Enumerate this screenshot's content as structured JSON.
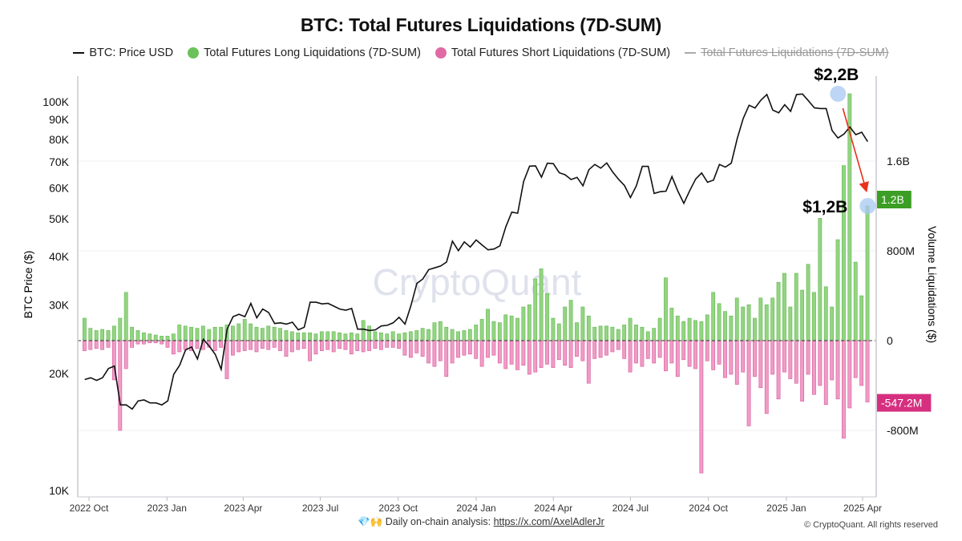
{
  "chart_data": {
    "type": "bar+line",
    "title": "BTC: Total Futures Liquidations (7D-SUM)",
    "legend": [
      {
        "name": "BTC: Price USD",
        "color": "#111111",
        "marker": "line",
        "enabled": true
      },
      {
        "name": "Total Futures Long Liquidations (7D-SUM)",
        "color": "#6cc25a",
        "marker": "dot",
        "enabled": true
      },
      {
        "name": "Total Futures Short Liquidations (7D-SUM)",
        "color": "#e06aa6",
        "marker": "dot",
        "enabled": true
      },
      {
        "name": "Total Futures Liquidations (7D-SUM)",
        "color": "#999999",
        "marker": "line",
        "enabled": false
      }
    ],
    "legend_position": "top",
    "left_axis": {
      "label": "BTC Price ($)",
      "scale": "log",
      "range": [
        10000,
        120000
      ],
      "ticks": [
        "100K",
        "90K",
        "80K",
        "70K",
        "60K",
        "50K",
        "40K",
        "30K",
        "20K",
        "10K"
      ],
      "tick_values": [
        100000,
        90000,
        80000,
        70000,
        60000,
        50000,
        40000,
        30000,
        20000,
        10000
      ]
    },
    "right_axis": {
      "label": "Volume Liquidations ($)",
      "scale": "linear",
      "unit": "M",
      "range": [
        -1200,
        2250
      ],
      "ticks": [
        "1.6B",
        "800M",
        "0",
        "-800M"
      ],
      "tick_values": [
        1600,
        800,
        0,
        -800
      ]
    },
    "x_axis": {
      "ticks": [
        "2022 Oct",
        "2023 Jan",
        "2023 Apr",
        "2023 Jul",
        "2023 Oct",
        "2024 Jan",
        "2024 Apr",
        "2024 Jul",
        "2024 Oct",
        "2025 Jan",
        "2025 Apr"
      ],
      "tick_dates": [
        "2022-10-01",
        "2023-01-01",
        "2023-04-01",
        "2023-07-01",
        "2023-10-01",
        "2024-01-01",
        "2024-04-01",
        "2024-07-01",
        "2024-10-01",
        "2025-01-01",
        "2025-04-01"
      ]
    },
    "dates": [
      "2022-09-26",
      "2022-10-03",
      "2022-10-10",
      "2022-10-17",
      "2022-10-24",
      "2022-10-31",
      "2022-11-07",
      "2022-11-14",
      "2022-11-21",
      "2022-11-28",
      "2022-12-05",
      "2022-12-12",
      "2022-12-19",
      "2022-12-26",
      "2023-01-02",
      "2023-01-09",
      "2023-01-16",
      "2023-01-23",
      "2023-01-30",
      "2023-02-06",
      "2023-02-13",
      "2023-02-20",
      "2023-02-27",
      "2023-03-06",
      "2023-03-13",
      "2023-03-20",
      "2023-03-27",
      "2023-04-03",
      "2023-04-10",
      "2023-04-17",
      "2023-04-24",
      "2023-05-01",
      "2023-05-08",
      "2023-05-15",
      "2023-05-22",
      "2023-05-29",
      "2023-06-05",
      "2023-06-12",
      "2023-06-19",
      "2023-06-26",
      "2023-07-03",
      "2023-07-10",
      "2023-07-17",
      "2023-07-24",
      "2023-07-31",
      "2023-08-07",
      "2023-08-14",
      "2023-08-21",
      "2023-08-28",
      "2023-09-04",
      "2023-09-11",
      "2023-09-18",
      "2023-09-25",
      "2023-10-02",
      "2023-10-09",
      "2023-10-16",
      "2023-10-23",
      "2023-10-30",
      "2023-11-06",
      "2023-11-13",
      "2023-11-20",
      "2023-11-27",
      "2023-12-04",
      "2023-12-11",
      "2023-12-18",
      "2023-12-25",
      "2024-01-01",
      "2024-01-08",
      "2024-01-15",
      "2024-01-22",
      "2024-01-29",
      "2024-02-05",
      "2024-02-12",
      "2024-02-19",
      "2024-02-26",
      "2024-03-04",
      "2024-03-11",
      "2024-03-18",
      "2024-03-25",
      "2024-04-01",
      "2024-04-08",
      "2024-04-15",
      "2024-04-22",
      "2024-04-29",
      "2024-05-06",
      "2024-05-13",
      "2024-05-20",
      "2024-05-27",
      "2024-06-03",
      "2024-06-10",
      "2024-06-17",
      "2024-06-24",
      "2024-07-01",
      "2024-07-08",
      "2024-07-15",
      "2024-07-22",
      "2024-07-29",
      "2024-08-05",
      "2024-08-12",
      "2024-08-19",
      "2024-08-26",
      "2024-09-02",
      "2024-09-09",
      "2024-09-16",
      "2024-09-23",
      "2024-09-30",
      "2024-10-07",
      "2024-10-14",
      "2024-10-21",
      "2024-10-28",
      "2024-11-04",
      "2024-11-11",
      "2024-11-18",
      "2024-11-25",
      "2024-12-02",
      "2024-12-09",
      "2024-12-16",
      "2024-12-23",
      "2024-12-30",
      "2025-01-06",
      "2025-01-13",
      "2025-01-20",
      "2025-01-27",
      "2025-02-03",
      "2025-02-10",
      "2025-02-17",
      "2025-02-24",
      "2025-03-03",
      "2025-03-10",
      "2025-03-17",
      "2025-03-24",
      "2025-03-31",
      "2025-04-07"
    ],
    "series": [
      {
        "name": "BTC: Price USD",
        "unit": "K USD",
        "axis": "left",
        "values": [
          19.3,
          19.5,
          19.2,
          19.5,
          20.6,
          20.9,
          16.6,
          16.6,
          16.2,
          17.0,
          17.1,
          16.8,
          16.8,
          16.6,
          17.0,
          19.9,
          21.0,
          23.0,
          23.4,
          21.8,
          24.5,
          23.5,
          22.4,
          20.5,
          26.0,
          28.0,
          28.4,
          28.0,
          30.3,
          27.8,
          29.3,
          28.7,
          26.9,
          27.0,
          26.8,
          27.1,
          25.9,
          26.3,
          30.5,
          30.5,
          30.2,
          30.3,
          29.8,
          29.3,
          29.1,
          29.4,
          26.0,
          26.0,
          25.8,
          25.9,
          26.5,
          26.6,
          27.0,
          27.9,
          26.8,
          29.9,
          34.1,
          35.0,
          37.0,
          37.4,
          37.8,
          38.7,
          43.8,
          41.4,
          43.6,
          42.3,
          44.1,
          42.8,
          41.6,
          41.8,
          42.6,
          47.7,
          52.0,
          51.7,
          62.4,
          68.3,
          68.4,
          64.0,
          69.5,
          69.3,
          65.7,
          64.9,
          63.1,
          63.9,
          60.8,
          66.9,
          69.0,
          67.5,
          69.6,
          66.0,
          63.2,
          60.9,
          56.7,
          60.8,
          68.2,
          68.2,
          58.1,
          58.7,
          58.9,
          64.2,
          58.9,
          54.8,
          59.1,
          63.3,
          65.6,
          62.1,
          62.9,
          69.0,
          67.9,
          69.5,
          80.4,
          90.5,
          98.0,
          96.4,
          101.0,
          104.4,
          95.2,
          93.7,
          98.3,
          94.5,
          104.4,
          104.7,
          100.6,
          96.5,
          96.1,
          96.1,
          84.4,
          80.7,
          82.6,
          86.1,
          82.3,
          83.5,
          79.0
        ]
      },
      {
        "name": "Total Futures Long Liquidations (7D-SUM)",
        "unit": "M USD",
        "axis": "right",
        "values": [
          200,
          110,
          90,
          100,
          90,
          130,
          200,
          430,
          120,
          90,
          70,
          60,
          50,
          40,
          40,
          60,
          140,
          130,
          120,
          110,
          130,
          100,
          120,
          120,
          140,
          130,
          150,
          190,
          150,
          120,
          110,
          130,
          120,
          110,
          90,
          80,
          70,
          70,
          70,
          60,
          80,
          80,
          80,
          70,
          60,
          70,
          60,
          180,
          130,
          80,
          70,
          60,
          80,
          60,
          70,
          80,
          90,
          110,
          100,
          160,
          170,
          120,
          100,
          80,
          90,
          100,
          140,
          190,
          280,
          170,
          160,
          230,
          220,
          200,
          300,
          320,
          550,
          640,
          420,
          200,
          150,
          300,
          360,
          160,
          300,
          220,
          120,
          130,
          130,
          120,
          100,
          140,
          200,
          140,
          120,
          80,
          110,
          200,
          560,
          290,
          220,
          170,
          200,
          180,
          170,
          230,
          430,
          330,
          260,
          220,
          380,
          300,
          320,
          200,
          380,
          320,
          380,
          520,
          600,
          300,
          600,
          450,
          680,
          430,
          1090,
          480,
          300,
          900,
          1560,
          2200,
          700,
          400,
          1200
        ]
      },
      {
        "name": "Total Futures Short Liquidations (7D-SUM)",
        "unit": "M USD",
        "axis": "right",
        "values": [
          -90,
          -80,
          -70,
          -80,
          -60,
          -350,
          -800,
          -250,
          -60,
          -30,
          -30,
          -20,
          -20,
          -30,
          -60,
          -120,
          -100,
          -80,
          -90,
          -70,
          -80,
          -60,
          -90,
          -60,
          -340,
          -130,
          -100,
          -90,
          -80,
          -100,
          -70,
          -80,
          -60,
          -90,
          -140,
          -100,
          -80,
          -70,
          -180,
          -120,
          -90,
          -80,
          -100,
          -70,
          -80,
          -120,
          -90,
          -100,
          -90,
          -70,
          -80,
          -60,
          -60,
          -70,
          -130,
          -150,
          -110,
          -140,
          -200,
          -230,
          -180,
          -320,
          -200,
          -150,
          -130,
          -120,
          -160,
          -230,
          -150,
          -130,
          -200,
          -250,
          -210,
          -260,
          -220,
          -300,
          -280,
          -240,
          -210,
          -240,
          -170,
          -220,
          -240,
          -140,
          -180,
          -380,
          -160,
          -150,
          -130,
          -100,
          -80,
          -160,
          -280,
          -200,
          -230,
          -160,
          -200,
          -150,
          -270,
          -200,
          -320,
          -170,
          -230,
          -250,
          -1180,
          -180,
          -260,
          -210,
          -330,
          -300,
          -390,
          -280,
          -760,
          -320,
          -420,
          -650,
          -300,
          -520,
          -280,
          -340,
          -380,
          -540,
          -300,
          -480,
          -400,
          -570,
          -350,
          -520,
          -870,
          -600,
          -330,
          -400,
          -547.2
        ]
      }
    ],
    "last_value_labels": {
      "long": "1.2B",
      "short": "-547.2M"
    },
    "annotations": [
      {
        "text": "$2,2B",
        "date": "2025-03-03",
        "value_m": 2200
      },
      {
        "text": "$1,2B",
        "date": "2025-04-07",
        "value_m": 1200
      }
    ],
    "watermark": "CryptoQuant"
  },
  "footer": {
    "emoji": "💎🙌",
    "text": "Daily on-chain analysis:",
    "link": "https://x.com/AxelAdlerJr",
    "copyright": "© CryptoQuant. All rights reserved"
  }
}
